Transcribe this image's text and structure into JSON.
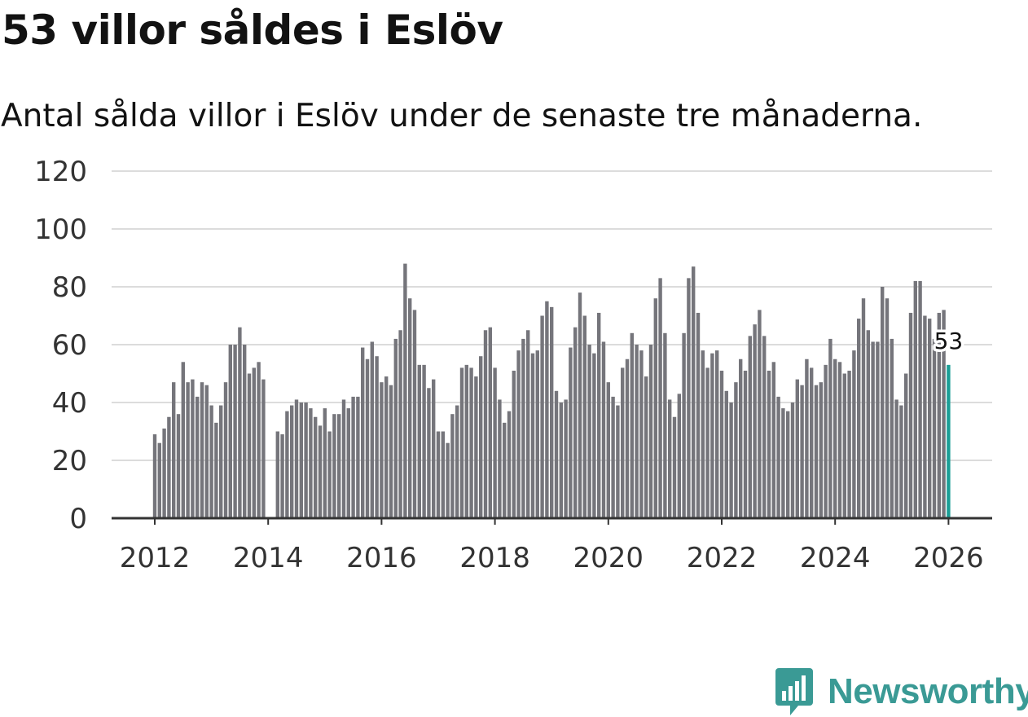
{
  "title": "53 villor såldes i Eslöv",
  "subtitle": "Antal sålda villor i Eslöv under de senaste tre månaderna.",
  "brand": {
    "name": "Newsworthy",
    "icon": "newsworthy-logo-icon"
  },
  "colors": {
    "bar": "#75757b",
    "highlight": "#1a9e96",
    "grid": "#dcdcdc",
    "axis": "#333333",
    "text": "#333333",
    "brand": "#3a9a95"
  },
  "chart_data": {
    "type": "bar",
    "title": "53 villor såldes i Eslöv",
    "subtitle": "Antal sålda villor i Eslöv under de senaste tre månaderna.",
    "xlabel": "",
    "ylabel": "",
    "ylim": [
      0,
      120
    ],
    "yticks": [
      0,
      20,
      40,
      60,
      80,
      100,
      120
    ],
    "xticks": [
      "2012",
      "2014",
      "2016",
      "2018",
      "2020",
      "2022",
      "2024",
      "2026"
    ],
    "start": "2012-01",
    "frequency": "monthly",
    "values": [
      29,
      26,
      31,
      35,
      47,
      36,
      54,
      47,
      48,
      42,
      47,
      46,
      39,
      33,
      39,
      47,
      60,
      60,
      66,
      60,
      50,
      52,
      54,
      48,
      null,
      null,
      30,
      29,
      37,
      39,
      41,
      40,
      40,
      38,
      35,
      32,
      38,
      30,
      36,
      36,
      41,
      38,
      42,
      42,
      59,
      55,
      61,
      56,
      47,
      49,
      46,
      62,
      65,
      88,
      76,
      72,
      53,
      53,
      45,
      48,
      30,
      30,
      26,
      36,
      39,
      52,
      53,
      52,
      49,
      56,
      65,
      66,
      52,
      41,
      33,
      37,
      51,
      58,
      62,
      65,
      57,
      58,
      70,
      75,
      73,
      44,
      40,
      41,
      59,
      66,
      78,
      70,
      60,
      57,
      71,
      61,
      47,
      42,
      39,
      52,
      55,
      64,
      60,
      58,
      49,
      60,
      76,
      83,
      64,
      41,
      35,
      43,
      64,
      83,
      87,
      71,
      58,
      52,
      57,
      58,
      51,
      44,
      40,
      47,
      55,
      51,
      63,
      67,
      72,
      63,
      51,
      54,
      42,
      38,
      37,
      40,
      48,
      46,
      55,
      52,
      46,
      47,
      53,
      62,
      55,
      54,
      50,
      51,
      58,
      69,
      76,
      65,
      61,
      61,
      80,
      76,
      62,
      41,
      39,
      50,
      71,
      82,
      82,
      70,
      69,
      62,
      71,
      72,
      53
    ],
    "highlight": {
      "label": "53",
      "value": 53,
      "period": "2026-01"
    }
  }
}
